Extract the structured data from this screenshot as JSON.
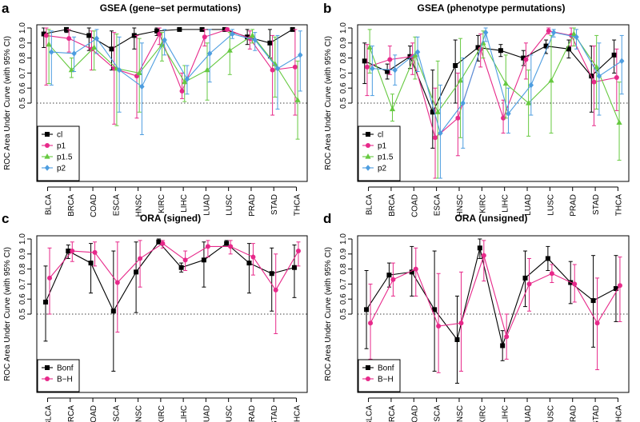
{
  "figure": {
    "categories": [
      "BLCA",
      "BRCA",
      "COAD",
      "ESCA",
      "HNSC",
      "KIRC",
      "LIHC",
      "LUAD",
      "LUSC",
      "PRAD",
      "STAD",
      "THCA"
    ],
    "colors": {
      "cl": "#000000",
      "p1": "#e7298a",
      "p1.5": "#66c940",
      "p2": "#4d9de0",
      "Bonf": "#000000",
      "B-H": "#e7298a"
    },
    "ylabel": "ROC Area Under Curve (with 95% CI)",
    "ytick_labels": [
      "0.5",
      "0.6",
      "0.7",
      "0.8",
      "0.9",
      "1.0"
    ],
    "ylim": [
      0.0,
      1.0
    ],
    "reference_line": 0.5
  },
  "chart_data": [
    {
      "panel": "a",
      "type": "line",
      "title": "GSEA (gene−set permutations)",
      "legend": {
        "placement": "bottom-left",
        "entries": [
          "cl",
          "p1",
          "p1.5",
          "p2"
        ]
      },
      "series": [
        {
          "name": "cl",
          "marker": "square",
          "values": [
            0.96,
            0.99,
            0.95,
            0.86,
            0.95,
            0.98,
            0.99,
            0.99,
            0.99,
            0.94,
            0.9,
            0.99
          ],
          "lower": [
            0.87,
            0.97,
            0.85,
            0.72,
            0.86,
            0.95,
            0.98,
            0.98,
            0.98,
            0.89,
            0.8,
            0.98
          ],
          "upper": [
            1.0,
            1.0,
            1.0,
            0.98,
            1.0,
            1.0,
            1.0,
            1.0,
            1.0,
            0.99,
            0.99,
            1.0
          ]
        },
        {
          "name": "p1",
          "marker": "circle",
          "values": [
            0.95,
            0.93,
            0.86,
            0.73,
            0.68,
            0.96,
            0.58,
            0.94,
            0.99,
            0.93,
            0.72,
            0.74
          ],
          "lower": [
            0.62,
            0.84,
            0.72,
            0.36,
            0.4,
            0.89,
            0.53,
            0.88,
            0.98,
            0.86,
            0.42,
            0.42
          ],
          "upper": [
            1.0,
            0.99,
            0.98,
            0.97,
            0.95,
            1.0,
            0.7,
            0.99,
            1.0,
            0.98,
            0.95,
            0.99
          ]
        },
        {
          "name": "p1.5",
          "marker": "triangle",
          "values": [
            0.89,
            0.72,
            0.87,
            0.73,
            0.7,
            0.89,
            0.64,
            0.72,
            0.85,
            0.95,
            0.76,
            0.52
          ],
          "lower": [
            0.63,
            0.67,
            0.72,
            0.35,
            0.44,
            0.78,
            0.51,
            0.52,
            0.69,
            0.9,
            0.54,
            0.26
          ],
          "upper": [
            0.99,
            0.8,
            0.98,
            0.96,
            0.93,
            0.97,
            0.75,
            0.9,
            0.97,
            0.99,
            0.94,
            0.78
          ]
        },
        {
          "name": "p2",
          "marker": "diamond",
          "values": [
            0.84,
            0.83,
            0.93,
            0.72,
            0.61,
            0.92,
            0.66,
            0.83,
            0.96,
            0.92,
            0.73,
            0.82
          ],
          "lower": [
            0.62,
            0.71,
            0.83,
            0.44,
            0.29,
            0.82,
            0.56,
            0.64,
            0.93,
            0.85,
            0.46,
            0.58
          ],
          "upper": [
            0.98,
            0.94,
            0.99,
            0.94,
            0.9,
            0.99,
            0.75,
            0.99,
            0.99,
            0.97,
            0.95,
            0.98
          ]
        }
      ]
    },
    {
      "panel": "b",
      "type": "line",
      "title": "GSEA (phenotype permutations)",
      "legend": {
        "placement": "bottom-left",
        "entries": [
          "cl",
          "p1",
          "p1.5",
          "p2"
        ]
      },
      "series": [
        {
          "name": "cl",
          "marker": "square",
          "values": [
            0.78,
            0.71,
            0.81,
            0.44,
            0.75,
            0.87,
            0.85,
            0.8,
            0.88,
            0.86,
            0.68,
            0.82
          ],
          "lower": [
            0.63,
            0.66,
            0.73,
            0.2,
            0.5,
            0.78,
            0.81,
            0.75,
            0.83,
            0.8,
            0.44,
            0.7
          ],
          "upper": [
            0.9,
            0.76,
            0.88,
            0.72,
            0.92,
            0.95,
            0.89,
            0.85,
            0.92,
            0.92,
            0.88,
            0.92
          ]
        },
        {
          "name": "p1",
          "marker": "circle",
          "values": [
            0.74,
            0.79,
            0.81,
            0.27,
            0.4,
            0.86,
            0.4,
            0.79,
            0.98,
            0.95,
            0.64,
            0.67
          ],
          "lower": [
            0.55,
            0.69,
            0.69,
            0.0,
            0.15,
            0.74,
            0.3,
            0.66,
            0.96,
            0.88,
            0.35,
            0.45
          ],
          "upper": [
            0.89,
            0.88,
            0.9,
            0.6,
            0.7,
            0.96,
            0.52,
            0.9,
            1.0,
            1.0,
            0.88,
            0.86
          ]
        },
        {
          "name": "p1.5",
          "marker": "triangle",
          "values": [
            0.87,
            0.46,
            0.82,
            0.44,
            0.65,
            0.9,
            0.63,
            0.5,
            0.65,
            0.96,
            0.74,
            0.37
          ],
          "lower": [
            0.7,
            0.38,
            0.66,
            0.0,
            0.27,
            0.8,
            0.4,
            0.28,
            0.3,
            0.88,
            0.46,
            0.12
          ],
          "upper": [
            0.99,
            0.56,
            0.94,
            0.78,
            0.93,
            0.98,
            0.82,
            0.72,
            0.95,
            1.0,
            0.95,
            0.64
          ]
        },
        {
          "name": "p2",
          "marker": "diamond",
          "values": [
            0.73,
            0.72,
            0.84,
            0.3,
            0.5,
            0.97,
            0.43,
            0.62,
            0.97,
            0.94,
            0.68,
            0.78
          ],
          "lower": [
            0.55,
            0.62,
            0.71,
            0.0,
            0.2,
            0.91,
            0.3,
            0.42,
            0.94,
            0.86,
            0.42,
            0.56
          ],
          "upper": [
            0.88,
            0.82,
            0.94,
            0.62,
            0.8,
            1.0,
            0.6,
            0.82,
            0.99,
            0.99,
            0.9,
            0.95
          ]
        }
      ]
    },
    {
      "panel": "c",
      "type": "line",
      "title": "ORA (signed)",
      "legend": {
        "placement": "bottom-left",
        "entries": [
          "Bonf",
          "B−H"
        ]
      },
      "series": [
        {
          "name": "Bonf",
          "marker": "square",
          "values": [
            0.58,
            0.92,
            0.84,
            0.52,
            0.78,
            0.98,
            0.81,
            0.86,
            0.97,
            0.84,
            0.77,
            0.81
          ],
          "lower": [
            0.32,
            0.87,
            0.64,
            0.12,
            0.51,
            0.97,
            0.78,
            0.68,
            0.96,
            0.64,
            0.52,
            0.61
          ],
          "upper": [
            0.82,
            0.96,
            0.97,
            0.92,
            0.98,
            1.0,
            0.84,
            0.98,
            0.99,
            0.97,
            0.94,
            0.96
          ]
        },
        {
          "name": "B−H",
          "marker": "circle",
          "values": [
            0.74,
            0.92,
            0.91,
            0.71,
            0.87,
            0.97,
            0.86,
            0.95,
            0.95,
            0.88,
            0.66,
            0.92
          ],
          "lower": [
            0.5,
            0.85,
            0.82,
            0.38,
            0.68,
            0.94,
            0.79,
            0.88,
            0.9,
            0.76,
            0.37,
            0.82
          ],
          "upper": [
            0.94,
            0.98,
            0.98,
            0.98,
            0.99,
            0.99,
            0.92,
            0.99,
            0.99,
            0.97,
            0.9,
            0.98
          ]
        }
      ]
    },
    {
      "panel": "d",
      "type": "line",
      "title": "ORA (unsigned)",
      "legend": {
        "placement": "bottom-left",
        "entries": [
          "Bonf",
          "B−H"
        ]
      },
      "series": [
        {
          "name": "Bonf",
          "marker": "square",
          "values": [
            0.53,
            0.76,
            0.78,
            0.53,
            0.33,
            0.94,
            0.29,
            0.74,
            0.87,
            0.71,
            0.59,
            0.67
          ],
          "lower": [
            0.27,
            0.68,
            0.62,
            0.12,
            0.04,
            0.87,
            0.19,
            0.55,
            0.79,
            0.57,
            0.28,
            0.45
          ],
          "upper": [
            0.79,
            0.84,
            0.95,
            0.92,
            0.62,
            1.0,
            0.39,
            0.92,
            0.95,
            0.85,
            0.89,
            0.89
          ]
        },
        {
          "name": "B−H",
          "marker": "circle",
          "values": [
            0.44,
            0.73,
            0.8,
            0.42,
            0.44,
            0.89,
            0.35,
            0.7,
            0.77,
            0.7,
            0.44,
            0.69
          ],
          "lower": [
            0.2,
            0.62,
            0.62,
            0.11,
            0.12,
            0.72,
            0.2,
            0.52,
            0.71,
            0.58,
            0.13,
            0.45
          ],
          "upper": [
            0.7,
            0.84,
            0.94,
            0.77,
            0.78,
            0.99,
            0.5,
            0.87,
            0.83,
            0.83,
            0.74,
            0.88
          ]
        }
      ]
    }
  ]
}
